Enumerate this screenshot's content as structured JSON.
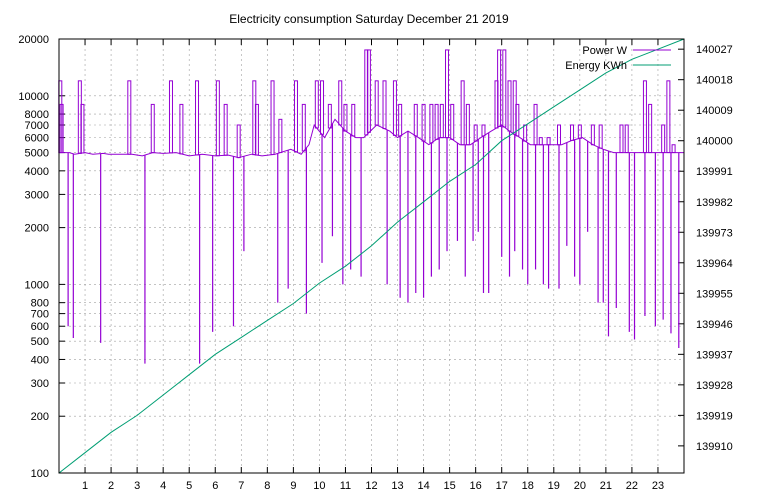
{
  "chart_data": {
    "type": "line",
    "title": "Electricity consumption Saturday December 21 2019",
    "xlabel": "",
    "ylabel": "",
    "y2label": "",
    "x_ticks": [
      "1",
      "2",
      "3",
      "4",
      "5",
      "6",
      "7",
      "8",
      "9",
      "10",
      "11",
      "12",
      "13",
      "14",
      "15",
      "16",
      "17",
      "18",
      "19",
      "20",
      "21",
      "22",
      "23"
    ],
    "xlim": [
      0,
      24
    ],
    "y_scale": "log",
    "ylim": [
      100,
      20000
    ],
    "y_ticks": [
      100,
      200,
      300,
      400,
      500,
      600,
      700,
      800,
      1000,
      2000,
      3000,
      4000,
      5000,
      6000,
      7000,
      8000,
      10000,
      20000
    ],
    "y_tick_labels": [
      "100",
      "200",
      "300",
      "400",
      "500",
      "600",
      "700",
      "800",
      "1000",
      "2000",
      "3000",
      "4000",
      "5000",
      "6000",
      "7000",
      "8000",
      "10000",
      "20000"
    ],
    "y2lim": [
      139902,
      140030
    ],
    "y2_ticks": [
      139910,
      139919,
      139928,
      139937,
      139946,
      139955,
      139964,
      139973,
      139982,
      139991,
      140000,
      140009,
      140018,
      140027
    ],
    "y2_tick_labels": [
      "139910",
      "139919",
      "139928",
      "139937",
      "139946",
      "139955",
      "139964",
      "139973",
      "139982",
      "139991",
      "140000",
      "140009",
      "140018",
      "140027"
    ],
    "grid": true,
    "legend_position": "top-right",
    "series": [
      {
        "name": "Power W",
        "axis": "left",
        "color": "#9400d3",
        "base": [
          [
            0.0,
            5000
          ],
          [
            0.4,
            5000
          ],
          [
            0.6,
            4900
          ],
          [
            1.0,
            5000
          ],
          [
            1.3,
            4900
          ],
          [
            1.7,
            4950
          ],
          [
            1.9,
            4900
          ],
          [
            2.8,
            4900
          ],
          [
            3.2,
            4800
          ],
          [
            3.6,
            5000
          ],
          [
            4.0,
            4950
          ],
          [
            4.5,
            5000
          ],
          [
            5.0,
            4800
          ],
          [
            5.5,
            4900
          ],
          [
            6.0,
            4800
          ],
          [
            6.5,
            4850
          ],
          [
            6.9,
            4700
          ],
          [
            7.4,
            4900
          ],
          [
            7.8,
            4800
          ],
          [
            8.3,
            4900
          ],
          [
            8.9,
            5200
          ],
          [
            9.3,
            4900
          ],
          [
            9.6,
            5500
          ],
          [
            9.8,
            7000
          ],
          [
            10.2,
            6000
          ],
          [
            10.6,
            7500
          ],
          [
            11.0,
            6500
          ],
          [
            11.4,
            6000
          ],
          [
            11.7,
            6000
          ],
          [
            12.2,
            7000
          ],
          [
            12.7,
            6500
          ],
          [
            13.0,
            6000
          ],
          [
            13.4,
            6500
          ],
          [
            13.8,
            6000
          ],
          [
            14.2,
            5500
          ],
          [
            14.6,
            6000
          ],
          [
            15.0,
            6000
          ],
          [
            15.4,
            5500
          ],
          [
            15.8,
            5500
          ],
          [
            16.2,
            6000
          ],
          [
            16.6,
            6500
          ],
          [
            17.0,
            7000
          ],
          [
            17.3,
            6500
          ],
          [
            17.7,
            6000
          ],
          [
            18.1,
            5500
          ],
          [
            18.5,
            5500
          ],
          [
            18.9,
            5500
          ],
          [
            19.3,
            5500
          ],
          [
            19.7,
            5800
          ],
          [
            20.1,
            6000
          ],
          [
            20.5,
            5500
          ],
          [
            20.9,
            5200
          ],
          [
            21.3,
            5000
          ],
          [
            21.7,
            5000
          ],
          [
            22.1,
            5000
          ],
          [
            22.5,
            5000
          ],
          [
            22.9,
            5000
          ],
          [
            23.3,
            5000
          ],
          [
            23.7,
            5000
          ],
          [
            24.0,
            5000
          ]
        ],
        "spikes_high": [
          [
            0.05,
            12000
          ],
          [
            0.1,
            9000
          ],
          [
            0.8,
            12000
          ],
          [
            0.9,
            9000
          ],
          [
            2.7,
            12000
          ],
          [
            3.6,
            9000
          ],
          [
            4.3,
            12000
          ],
          [
            4.7,
            9000
          ],
          [
            5.3,
            12000
          ],
          [
            6.1,
            12000
          ],
          [
            6.4,
            9000
          ],
          [
            6.9,
            7000
          ],
          [
            7.5,
            12000
          ],
          [
            7.6,
            9000
          ],
          [
            8.2,
            12000
          ],
          [
            8.5,
            7500
          ],
          [
            9.1,
            12000
          ],
          [
            9.4,
            9000
          ],
          [
            9.9,
            12000
          ],
          [
            10.1,
            12000
          ],
          [
            10.4,
            9000
          ],
          [
            10.8,
            12000
          ],
          [
            11.0,
            9000
          ],
          [
            11.3,
            9000
          ],
          [
            11.8,
            17500
          ],
          [
            11.9,
            17500
          ],
          [
            12.2,
            12000
          ],
          [
            12.5,
            12000
          ],
          [
            12.9,
            12000
          ],
          [
            13.1,
            9000
          ],
          [
            13.7,
            9000
          ],
          [
            14.0,
            9000
          ],
          [
            14.3,
            9000
          ],
          [
            14.5,
            9000
          ],
          [
            14.7,
            9000
          ],
          [
            14.9,
            17500
          ],
          [
            15.1,
            9000
          ],
          [
            15.5,
            12000
          ],
          [
            15.7,
            9000
          ],
          [
            16.0,
            7000
          ],
          [
            16.3,
            7000
          ],
          [
            16.8,
            12000
          ],
          [
            16.9,
            17500
          ],
          [
            17.1,
            17500
          ],
          [
            17.3,
            12000
          ],
          [
            17.5,
            12000
          ],
          [
            17.6,
            9000
          ],
          [
            17.9,
            7000
          ],
          [
            18.3,
            9000
          ],
          [
            18.5,
            6000
          ],
          [
            18.8,
            6000
          ],
          [
            19.2,
            7000
          ],
          [
            19.7,
            7000
          ],
          [
            20.0,
            7000
          ],
          [
            20.5,
            7000
          ],
          [
            20.8,
            7000
          ],
          [
            21.6,
            7000
          ],
          [
            21.8,
            7000
          ],
          [
            22.5,
            12000
          ],
          [
            22.7,
            9000
          ],
          [
            23.2,
            7000
          ],
          [
            23.4,
            12000
          ],
          [
            23.6,
            5500
          ]
        ],
        "spikes_low": [
          [
            0.35,
            600
          ],
          [
            0.55,
            520
          ],
          [
            1.6,
            490
          ],
          [
            3.3,
            380
          ],
          [
            5.4,
            380
          ],
          [
            5.9,
            560
          ],
          [
            6.7,
            600
          ],
          [
            7.1,
            1500
          ],
          [
            8.4,
            800
          ],
          [
            8.8,
            950
          ],
          [
            9.5,
            700
          ],
          [
            10.1,
            1300
          ],
          [
            10.5,
            1800
          ],
          [
            10.9,
            1000
          ],
          [
            11.2,
            1200
          ],
          [
            11.6,
            1100
          ],
          [
            12.6,
            1000
          ],
          [
            13.1,
            850
          ],
          [
            13.4,
            800
          ],
          [
            13.7,
            900
          ],
          [
            14.0,
            850
          ],
          [
            14.3,
            1100
          ],
          [
            14.6,
            1200
          ],
          [
            14.9,
            1500
          ],
          [
            15.3,
            1700
          ],
          [
            15.6,
            1100
          ],
          [
            15.9,
            1700
          ],
          [
            16.1,
            1900
          ],
          [
            16.3,
            900
          ],
          [
            16.5,
            900
          ],
          [
            17.0,
            1400
          ],
          [
            17.3,
            1100
          ],
          [
            17.5,
            1500
          ],
          [
            17.8,
            1200
          ],
          [
            18.0,
            1000
          ],
          [
            18.3,
            1200
          ],
          [
            18.6,
            1000
          ],
          [
            18.8,
            950
          ],
          [
            19.2,
            950
          ],
          [
            19.5,
            1600
          ],
          [
            19.8,
            1100
          ],
          [
            20.0,
            1000
          ],
          [
            20.3,
            1900
          ],
          [
            20.7,
            800
          ],
          [
            20.9,
            800
          ],
          [
            21.1,
            530
          ],
          [
            21.4,
            750
          ],
          [
            21.9,
            560
          ],
          [
            22.1,
            510
          ],
          [
            22.5,
            680
          ],
          [
            22.9,
            600
          ],
          [
            23.2,
            650
          ],
          [
            23.5,
            550
          ],
          [
            23.8,
            460
          ]
        ]
      },
      {
        "name": "Energy KWh",
        "axis": "right",
        "color": "#009e73",
        "points": [
          [
            0.0,
            139902
          ],
          [
            1.0,
            139908
          ],
          [
            2.0,
            139914
          ],
          [
            3.0,
            139919
          ],
          [
            4.0,
            139925
          ],
          [
            5.0,
            139931
          ],
          [
            6.0,
            139937
          ],
          [
            7.0,
            139942
          ],
          [
            8.0,
            139947
          ],
          [
            9.0,
            139952
          ],
          [
            10.0,
            139958
          ],
          [
            11.0,
            139963
          ],
          [
            12.0,
            139969
          ],
          [
            13.0,
            139976
          ],
          [
            14.0,
            139982
          ],
          [
            15.0,
            139988
          ],
          [
            16.0,
            139993
          ],
          [
            17.0,
            140000
          ],
          [
            18.0,
            140005
          ],
          [
            19.0,
            140010
          ],
          [
            20.0,
            140015
          ],
          [
            21.0,
            140020
          ],
          [
            22.0,
            140024
          ],
          [
            23.0,
            140027
          ],
          [
            24.0,
            140030
          ]
        ]
      }
    ]
  }
}
